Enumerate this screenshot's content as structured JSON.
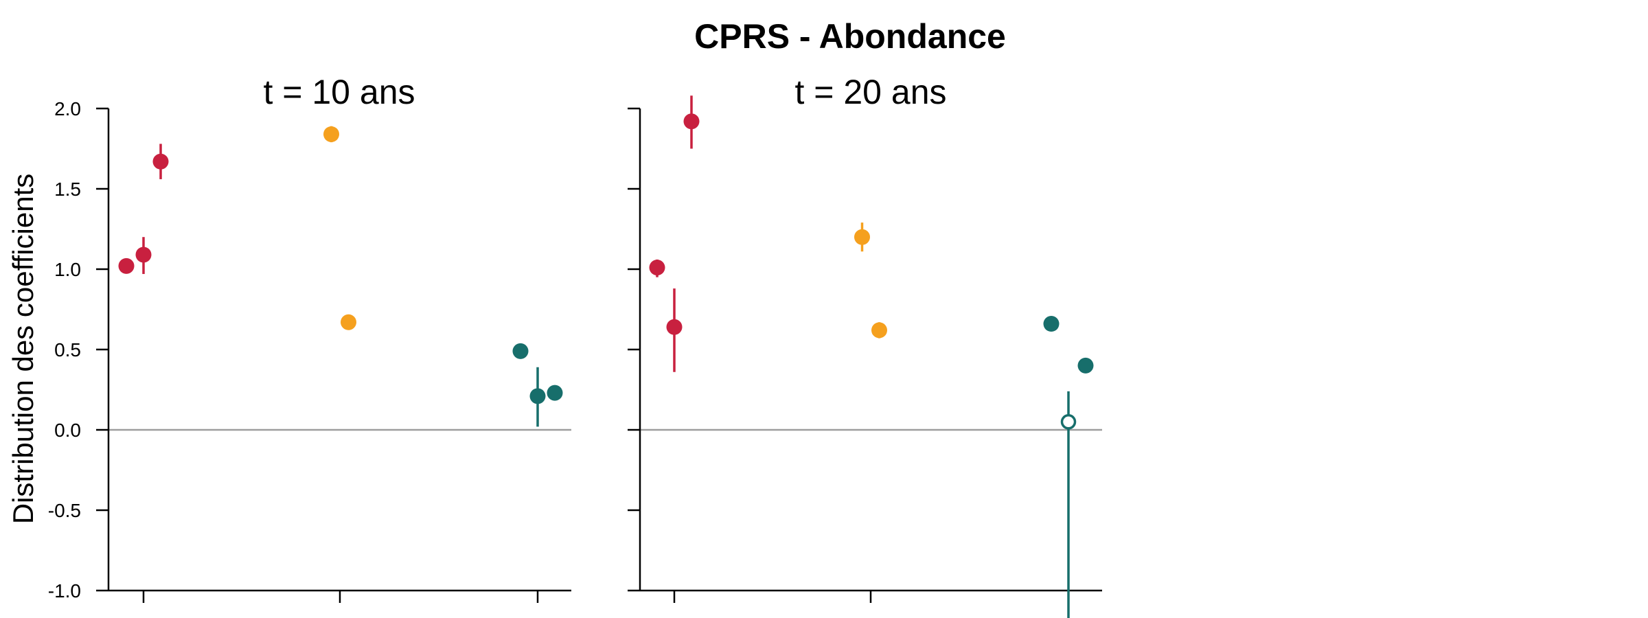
{
  "chart_data": {
    "type": "scatter",
    "title": "CPRS - Abondance",
    "ylabel": "Distribution des coefficients",
    "ylim": [
      -1.0,
      2.0
    ],
    "yticks": [
      "2.0",
      "1.5",
      "1.0",
      "0.5",
      "0.0",
      "-0.5",
      "-1.0"
    ],
    "ytick_values": [
      2.0,
      1.5,
      1.0,
      0.5,
      0.0,
      -0.5,
      -1.0
    ],
    "groups": 3,
    "reference_line": 0.0,
    "colors": {
      "red": "#c8203f",
      "orange": "#f5a01e",
      "teal": "#176e6b",
      "zero_line": "#9e9e9e",
      "axis": "#000000"
    },
    "panels": [
      {
        "title": "t = 10 ans",
        "points": [
          {
            "group": 1,
            "offset": -1,
            "color": "red",
            "y": 1.02,
            "low": 1.02,
            "high": 1.02,
            "filled": true
          },
          {
            "group": 1,
            "offset": 0,
            "color": "red",
            "y": 1.09,
            "low": 0.97,
            "high": 1.2,
            "filled": true
          },
          {
            "group": 1,
            "offset": 1,
            "color": "red",
            "y": 1.67,
            "low": 1.56,
            "high": 1.78,
            "filled": true
          },
          {
            "group": 2,
            "offset": -0.5,
            "color": "orange",
            "y": 1.84,
            "low": 1.79,
            "high": 1.89,
            "filled": true
          },
          {
            "group": 2,
            "offset": 0.5,
            "color": "orange",
            "y": 0.67,
            "low": 0.67,
            "high": 0.67,
            "filled": true
          },
          {
            "group": 3,
            "offset": -1,
            "color": "teal",
            "y": 0.49,
            "low": 0.49,
            "high": 0.49,
            "filled": true
          },
          {
            "group": 3,
            "offset": 0,
            "color": "teal",
            "y": 0.21,
            "low": 0.02,
            "high": 0.39,
            "filled": true
          },
          {
            "group": 3,
            "offset": 1,
            "color": "teal",
            "y": 0.23,
            "low": 0.23,
            "high": 0.23,
            "filled": true
          }
        ]
      },
      {
        "title": "t = 20 ans",
        "points": [
          {
            "group": 1,
            "offset": -1,
            "color": "red",
            "y": 1.01,
            "low": 0.95,
            "high": 1.06,
            "filled": true
          },
          {
            "group": 1,
            "offset": 0,
            "color": "red",
            "y": 0.64,
            "low": 0.36,
            "high": 0.88,
            "filled": true
          },
          {
            "group": 1,
            "offset": 1,
            "color": "red",
            "y": 1.92,
            "low": 1.75,
            "high": 2.08,
            "filled": true
          },
          {
            "group": 2,
            "offset": -0.5,
            "color": "orange",
            "y": 1.2,
            "low": 1.11,
            "high": 1.29,
            "filled": true
          },
          {
            "group": 2,
            "offset": 0.5,
            "color": "orange",
            "y": 0.62,
            "low": 0.57,
            "high": 0.67,
            "filled": true
          },
          {
            "group": 3,
            "offset": -1,
            "color": "teal",
            "y": 0.66,
            "low": 0.66,
            "high": 0.66,
            "filled": true
          },
          {
            "group": 3,
            "offset": 0,
            "color": "teal",
            "y": 0.05,
            "low": -1.2,
            "high": 0.24,
            "filled": false
          },
          {
            "group": 3,
            "offset": 1,
            "color": "teal",
            "y": 0.4,
            "low": 0.36,
            "high": 0.43,
            "filled": true
          }
        ]
      }
    ]
  }
}
